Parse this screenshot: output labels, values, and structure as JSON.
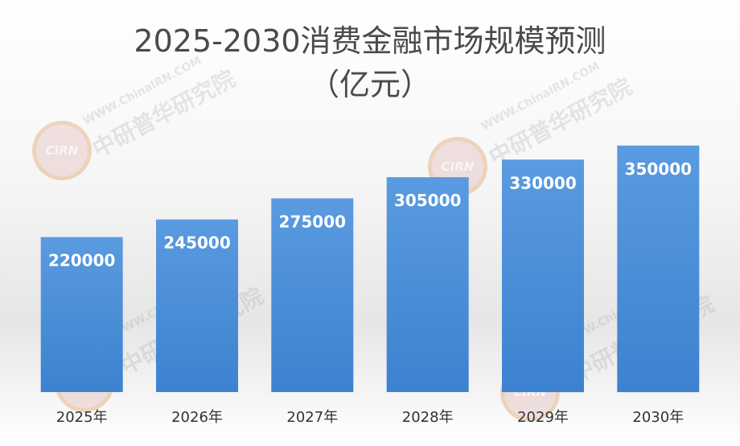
{
  "chart_data": {
    "type": "bar",
    "title": "2025-2030消费金融市场规模预测",
    "subtitle": "（亿元）",
    "categories": [
      "2025年",
      "2026年",
      "2027年",
      "2028年",
      "2029年",
      "2030年"
    ],
    "values": [
      220000,
      245000,
      275000,
      305000,
      330000,
      350000
    ],
    "data_labels": [
      "220000",
      "245000",
      "275000",
      "305000",
      "330000",
      "350000"
    ],
    "xlabel": "",
    "ylabel": "",
    "ylim": [
      0,
      400000
    ],
    "grid": false,
    "legend": "none",
    "bar_color": "#4a8fd6"
  },
  "watermark": {
    "url": "WWW.ChinaIRN.COM",
    "name": "中研普华研究院",
    "logo": "CIRN"
  }
}
